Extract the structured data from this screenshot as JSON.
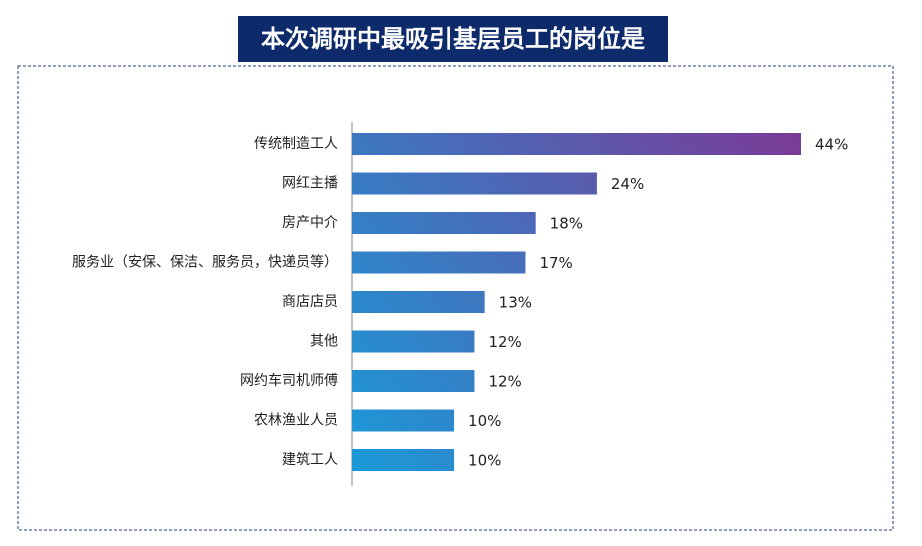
{
  "chart_data": {
    "type": "bar",
    "orientation": "horizontal",
    "title": "本次调研中最吸引基层员工的岗位是",
    "categories": [
      "传统制造工人",
      "网红主播",
      "房产中介",
      "服务业（安保、保洁、服务员，快递员等）",
      "商店店员",
      "其他",
      "网约车司机师傅",
      "农林渔业人员",
      "建筑工人"
    ],
    "values": [
      44,
      24,
      18,
      17,
      13,
      12,
      12,
      10,
      10
    ],
    "value_labels": [
      "44%",
      "24%",
      "18%",
      "17%",
      "13%",
      "12%",
      "12%",
      "10%",
      "10%"
    ],
    "gradient": [
      "#1a9ad8",
      "#7b3a96"
    ]
  }
}
